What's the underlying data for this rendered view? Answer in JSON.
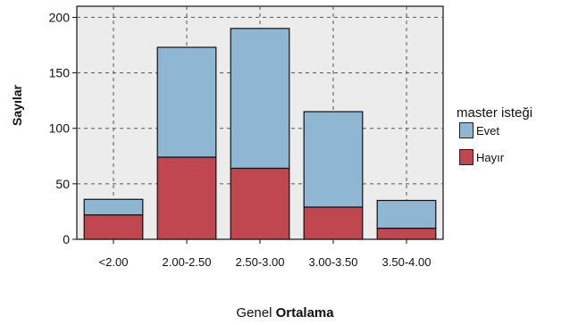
{
  "chart_data": {
    "type": "bar",
    "stacked": true,
    "categories": [
      "<2.00",
      "2.00-2.50",
      "2.50-3.00",
      "3.00-3.50",
      "3.50-4.00"
    ],
    "series": [
      {
        "name": "Hayır",
        "values": [
          22,
          74,
          64,
          29,
          10
        ],
        "color": "#c0474f"
      },
      {
        "name": "Evet",
        "values": [
          14,
          99,
          126,
          86,
          25
        ],
        "color": "#8fb7d3"
      }
    ],
    "xlabel_prefix": "Genel",
    "xlabel_bold": "Ortalama",
    "ylabel": "Sayılar",
    "ylim": [
      0,
      210
    ],
    "yticks": [
      0,
      50,
      100,
      150,
      200
    ],
    "grid": true,
    "legend": {
      "title": "master isteği",
      "items": [
        "Evet",
        "Hayır"
      ],
      "placement": "right"
    }
  }
}
